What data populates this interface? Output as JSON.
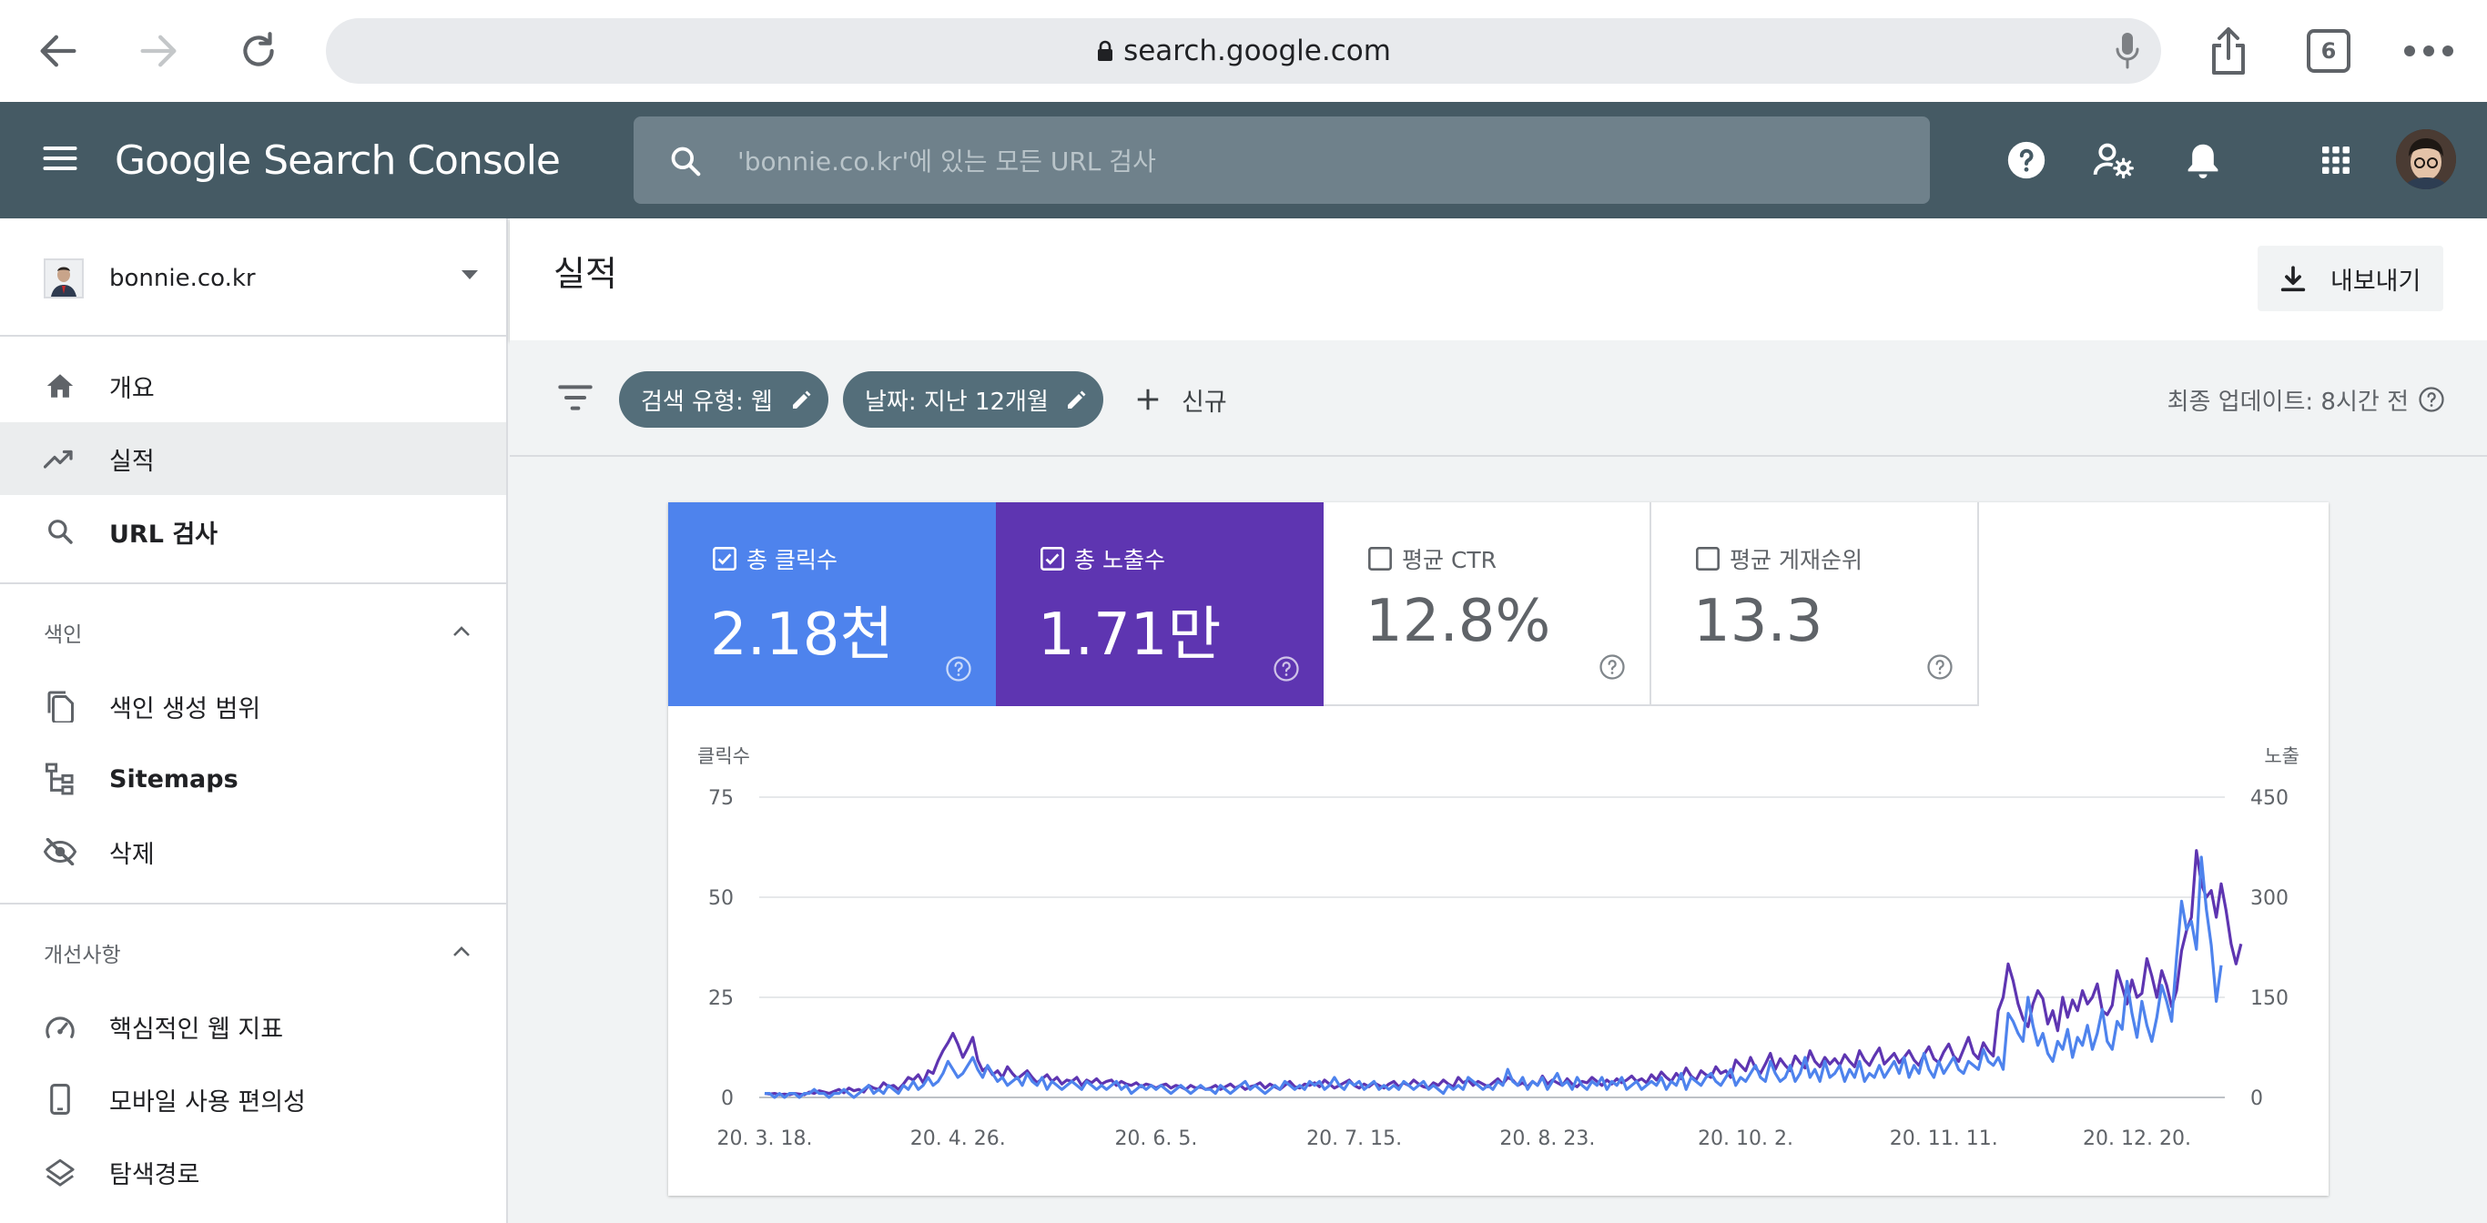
{
  "browser": {
    "url": "search.google.com",
    "tab_count": "6"
  },
  "header": {
    "product_google": "Google",
    "product_name": "Search Console",
    "search_placeholder": "'bonnie.co.kr'에 있는 모든 URL 검사"
  },
  "sidebar": {
    "property": "bonnie.co.kr",
    "items": [
      {
        "label": "개요",
        "icon": "home-icon"
      },
      {
        "label": "실적",
        "icon": "trending-up-icon",
        "active": true
      },
      {
        "label": "URL 검사",
        "icon": "search-icon"
      }
    ],
    "index_section": {
      "title": "색인",
      "items": [
        {
          "label": "색인 생성 범위",
          "icon": "copy-icon"
        },
        {
          "label": "Sitemaps",
          "icon": "sitemap-icon"
        },
        {
          "label": "삭제",
          "icon": "visibility-off-icon"
        }
      ]
    },
    "enhancements_section": {
      "title": "개선사항",
      "items": [
        {
          "label": "핵심적인 웹 지표",
          "icon": "speed-icon"
        },
        {
          "label": "모바일 사용 편의성",
          "icon": "phone-icon"
        },
        {
          "label": "탐색경로",
          "icon": "layers-icon"
        }
      ]
    }
  },
  "page": {
    "title": "실적",
    "export_label": "내보내기"
  },
  "filters": {
    "search_type": "검색 유형: 웹",
    "date": "날짜: 지난 12개월",
    "new_label": "신규",
    "last_update": "최종 업데이트: 8시간 전"
  },
  "metrics": {
    "clicks": {
      "label": "총 클릭수",
      "value": "2.18천",
      "checked": true
    },
    "impressions": {
      "label": "총 노출수",
      "value": "1.71만",
      "checked": true
    },
    "ctr": {
      "label": "평균 CTR",
      "value": "12.8%",
      "checked": false
    },
    "position": {
      "label": "평균 게재순위",
      "value": "13.3",
      "checked": false
    }
  },
  "colors": {
    "clicks": "#4e83ed",
    "impressions": "#5e35b1",
    "header": "#455a64"
  },
  "chart_data": {
    "type": "line",
    "left_axis_label": "클릭수",
    "right_axis_label": "노출",
    "left_ticks": [
      0,
      25,
      50,
      75
    ],
    "right_ticks": [
      0,
      150,
      300,
      450
    ],
    "left_ylim": [
      0,
      75
    ],
    "right_ylim": [
      0,
      450
    ],
    "x_tick_labels": [
      "20. 3. 18.",
      "20. 4. 26.",
      "20. 6. 5.",
      "20. 7. 15.",
      "20. 8. 23.",
      "20. 10. 2.",
      "20. 11. 11.",
      "20. 12. 20."
    ],
    "x_tick_indices": [
      0,
      39,
      79,
      119,
      158,
      198,
      238,
      277
    ],
    "series": [
      {
        "name": "클릭수",
        "axis": "left",
        "values": [
          1,
          1,
          0,
          1,
          0,
          1,
          1,
          0,
          1,
          1,
          2,
          1,
          1,
          0,
          1,
          1,
          2,
          1,
          0,
          1,
          2,
          3,
          1,
          2,
          1,
          3,
          2,
          1,
          3,
          2,
          4,
          2,
          3,
          5,
          3,
          4,
          6,
          9,
          7,
          5,
          6,
          8,
          10,
          7,
          5,
          8,
          6,
          4,
          5,
          3,
          4,
          5,
          3,
          6,
          4,
          3,
          5,
          2,
          4,
          3,
          2,
          3,
          4,
          3,
          2,
          4,
          3,
          2,
          3,
          2,
          3,
          4,
          2,
          3,
          1,
          2,
          3,
          2,
          3,
          2,
          3,
          2,
          1,
          2,
          3,
          2,
          1,
          2,
          3,
          2,
          2,
          1,
          3,
          2,
          1,
          2,
          3,
          4,
          2,
          3,
          2,
          1,
          2,
          3,
          2,
          4,
          3,
          2,
          3,
          2,
          4,
          3,
          4,
          2,
          3,
          5,
          3,
          2,
          4,
          3,
          4,
          2,
          3,
          4,
          2,
          3,
          2,
          3,
          2,
          4,
          3,
          2,
          3,
          4,
          2,
          3,
          2,
          1,
          3,
          2,
          3,
          2,
          5,
          4,
          3,
          2,
          3,
          2,
          4,
          3,
          7,
          4,
          3,
          5,
          2,
          4,
          3,
          5,
          2,
          4,
          6,
          3,
          4,
          2,
          5,
          3,
          2,
          4,
          3,
          5,
          2,
          4,
          3,
          5,
          2,
          3,
          4,
          2,
          3,
          4,
          3,
          5,
          2,
          4,
          3,
          6,
          2,
          5,
          4,
          3,
          5,
          6,
          4,
          3,
          5,
          7,
          3,
          5,
          4,
          6,
          8,
          5,
          4,
          9,
          6,
          4,
          5,
          8,
          4,
          6,
          10,
          5,
          7,
          4,
          9,
          5,
          6,
          8,
          4,
          7,
          5,
          9,
          4,
          6,
          5,
          8,
          5,
          7,
          9,
          6,
          10,
          5,
          8,
          6,
          11,
          7,
          5,
          9,
          6,
          8,
          10,
          7,
          6,
          9,
          8,
          7,
          12,
          9,
          8,
          10,
          7,
          21,
          19,
          16,
          14,
          25,
          18,
          13,
          16,
          11,
          9,
          14,
          12,
          17,
          10,
          15,
          13,
          18,
          12,
          16,
          22,
          14,
          12,
          19,
          17,
          29,
          21,
          15,
          24,
          18,
          14,
          20,
          28,
          24,
          19,
          35,
          49,
          42,
          44,
          37,
          60,
          47,
          38,
          24,
          33
        ]
      },
      {
        "name": "노출",
        "axis": "right",
        "values": [
          6,
          5,
          6,
          4,
          5,
          4,
          6,
          5,
          4,
          8,
          6,
          10,
          8,
          6,
          9,
          12,
          7,
          14,
          10,
          12,
          8,
          18,
          14,
          12,
          22,
          16,
          18,
          12,
          20,
          30,
          26,
          34,
          22,
          40,
          36,
          55,
          70,
          82,
          96,
          80,
          60,
          74,
          90,
          56,
          40,
          46,
          34,
          40,
          30,
          46,
          36,
          28,
          34,
          40,
          30,
          22,
          28,
          34,
          24,
          30,
          20,
          26,
          24,
          30,
          18,
          26,
          22,
          28,
          20,
          24,
          26,
          18,
          24,
          20,
          18,
          22,
          16,
          20,
          18,
          14,
          18,
          20,
          14,
          18,
          16,
          12,
          18,
          14,
          16,
          12,
          14,
          18,
          12,
          16,
          20,
          14,
          18,
          12,
          16,
          18,
          22,
          14,
          20,
          16,
          12,
          18,
          24,
          16,
          14,
          20,
          18,
          22,
          16,
          26,
          20,
          14,
          18,
          22,
          26,
          18,
          14,
          20,
          16,
          22,
          18,
          14,
          20,
          24,
          16,
          22,
          18,
          26,
          20,
          16,
          14,
          22,
          18,
          26,
          20,
          16,
          30,
          22,
          26,
          18,
          24,
          20,
          16,
          22,
          28,
          20,
          30,
          26,
          18,
          22,
          16,
          24,
          18,
          32,
          20,
          26,
          22,
          18,
          28,
          20,
          16,
          24,
          22,
          30,
          24,
          18,
          26,
          20,
          28,
          22,
          26,
          32,
          24,
          28,
          22,
          34,
          26,
          38,
          30,
          24,
          36,
          28,
          44,
          32,
          26,
          40,
          34,
          30,
          46,
          36,
          40,
          30,
          56,
          48,
          40,
          60,
          44,
          36,
          50,
          66,
          42,
          58,
          48,
          40,
          62,
          52,
          44,
          70,
          54,
          46,
          60,
          50,
          58,
          48,
          64,
          54,
          46,
          70,
          56,
          48,
          62,
          74,
          50,
          58,
          66,
          52,
          60,
          70,
          56,
          48,
          64,
          76,
          58,
          52,
          68,
          80,
          62,
          54,
          72,
          90,
          66,
          58,
          82,
          70,
          62,
          130,
          150,
          200,
          175,
          140,
          118,
          106,
          140,
          160,
          148,
          110,
          130,
          100,
          150,
          120,
          146,
          130,
          160,
          140,
          150,
          170,
          130,
          124,
          138,
          190,
          166,
          140,
          176,
          150,
          156,
          208,
          182,
          150,
          190,
          168,
          136,
          160,
          220,
          250,
          270,
          370,
          320,
          300,
          310,
          270,
          320,
          280,
          230,
          200,
          230
        ]
      }
    ],
    "grid": true,
    "legend": "none"
  }
}
